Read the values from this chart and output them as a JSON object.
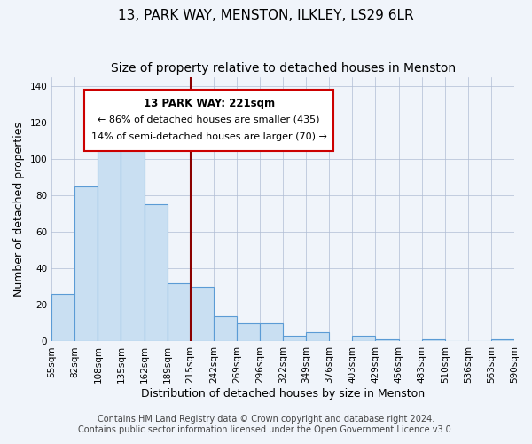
{
  "title": "13, PARK WAY, MENSTON, ILKLEY, LS29 6LR",
  "subtitle": "Size of property relative to detached houses in Menston",
  "xlabel": "Distribution of detached houses by size in Menston",
  "ylabel": "Number of detached properties",
  "bin_labels": [
    "55sqm",
    "82sqm",
    "108sqm",
    "135sqm",
    "162sqm",
    "189sqm",
    "215sqm",
    "242sqm",
    "269sqm",
    "296sqm",
    "322sqm",
    "349sqm",
    "376sqm",
    "403sqm",
    "429sqm",
    "456sqm",
    "483sqm",
    "510sqm",
    "536sqm",
    "563sqm",
    "590sqm"
  ],
  "bar_values": [
    26,
    85,
    109,
    106,
    75,
    32,
    30,
    14,
    10,
    10,
    3,
    5,
    0,
    3,
    1,
    0,
    1,
    0,
    0,
    1
  ],
  "bar_color": "#c9dff2",
  "bar_edge_color": "#5b9bd5",
  "vline_x": 6,
  "vline_color": "#8b0000",
  "annotation_title": "13 PARK WAY: 221sqm",
  "annotation_line1": "← 86% of detached houses are smaller (435)",
  "annotation_line2": "14% of semi-detached houses are larger (70) →",
  "annotation_box_color": "#ffffff",
  "annotation_box_edge": "#cc0000",
  "ylim": [
    0,
    145
  ],
  "yticks": [
    0,
    20,
    40,
    60,
    80,
    100,
    120,
    140
  ],
  "footer_line1": "Contains HM Land Registry data © Crown copyright and database right 2024.",
  "footer_line2": "Contains public sector information licensed under the Open Government Licence v3.0.",
  "background_color": "#f0f4fa",
  "plot_background_color": "#f0f4fa",
  "grid_color": "#b0bcd4",
  "title_fontsize": 11,
  "subtitle_fontsize": 10,
  "xlabel_fontsize": 9,
  "ylabel_fontsize": 9,
  "tick_fontsize": 7.5,
  "footer_fontsize": 7
}
